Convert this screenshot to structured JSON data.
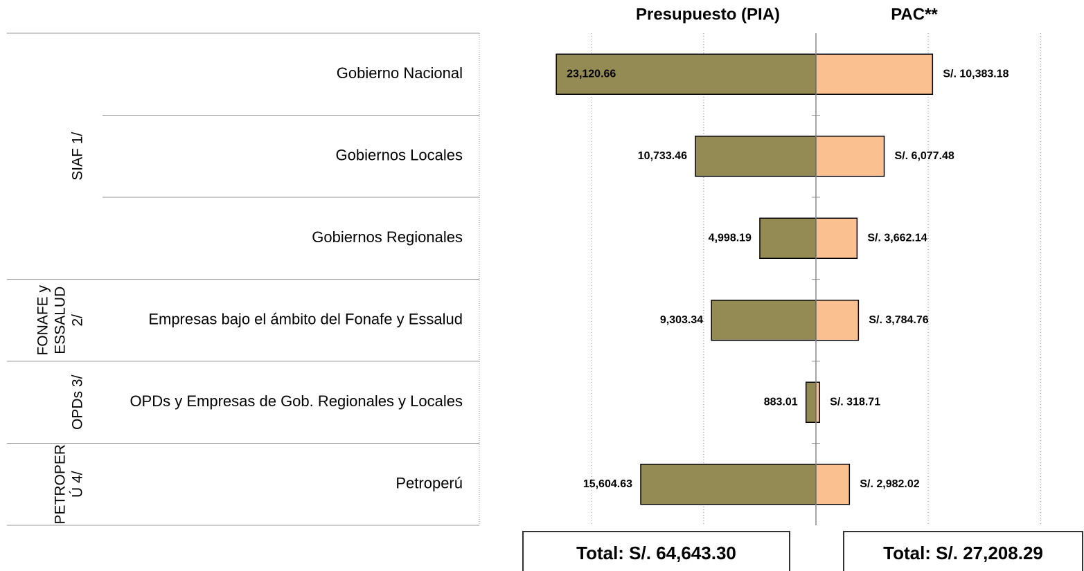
{
  "chart_data": {
    "type": "butterfly",
    "groups": [
      {
        "lines": [
          "SIAF 1/"
        ],
        "categories": [
          "Gobierno Nacional",
          "Gobiernos Locales",
          "Gobiernos Regionales"
        ]
      },
      {
        "lines": [
          "FONAFE y",
          "ESSALUD",
          "2/"
        ],
        "categories": [
          "Empresas bajo el ámbito del Fonafe y Essalud"
        ]
      },
      {
        "lines": [
          "OPDs 3/"
        ],
        "categories": [
          "OPDs y Empresas de Gob. Regionales y Locales"
        ]
      },
      {
        "lines": [
          "PETROPER",
          "Ú 4/"
        ],
        "categories": [
          "Petroperú"
        ]
      }
    ],
    "series": [
      {
        "name": "Presupuesto (PIA)",
        "color": "#948a54",
        "side": "left",
        "values": [
          23120.66,
          10733.46,
          4998.19,
          9303.34,
          883.01,
          15604.63
        ],
        "value_labels": [
          "23,120.66",
          "10,733.46",
          "4,998.19",
          "9,303.34",
          "883.01",
          "15,604.63"
        ],
        "total": "Total: S/. 64,643.30"
      },
      {
        "name": "PAC**",
        "color": "#fac090",
        "side": "right",
        "values": [
          10383.18,
          6077.48,
          3662.14,
          3784.76,
          318.71,
          2982.02
        ],
        "value_labels": [
          "S/. 10,383.18",
          "S/. 6,077.48",
          "S/. 3,662.14",
          "S/. 3,784.76",
          "S/. 318.71",
          "S/. 2,982.02"
        ],
        "total": "Total: S/. 27,208.29"
      }
    ],
    "xlim": [
      0,
      23500
    ],
    "xticks": [
      10000,
      20000
    ],
    "grid": true
  }
}
